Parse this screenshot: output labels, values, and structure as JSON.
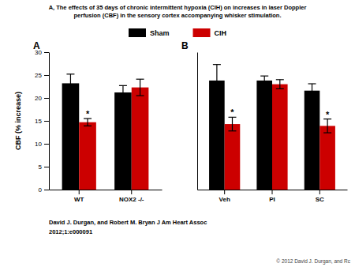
{
  "chart_data": [
    {
      "type": "bar",
      "title": "A, The effects of 35 days of chronic intermittent hypoxia (CIH) on increases in laser Doppler",
      "subtitle": "perfusion (CBF) in the sensory cortex accompanying whisker stimulation.",
      "panel_label": "A",
      "ylabel": "CBF (% increase)",
      "categories": [
        "WT",
        "NOX2 -/-"
      ],
      "series": [
        {
          "name": "Sham",
          "color": "#000000",
          "values": [
            23.2,
            21.2
          ],
          "errors": [
            2.0,
            1.5
          ]
        },
        {
          "name": "CIH",
          "color": "#cc0000",
          "values": [
            14.7,
            22.3
          ],
          "errors": [
            0.8,
            1.8
          ]
        }
      ],
      "ylim": [
        0,
        30
      ],
      "yticks": [
        0,
        5,
        10,
        15,
        20,
        25,
        30
      ],
      "legend": "top",
      "annotations": [
        {
          "text": "*",
          "category": "WT",
          "series": "CIH"
        }
      ],
      "footer": [
        "David J. Durgan, and Robert M. Bryan J Am Heart Assoc",
        "2012;1:e000091"
      ],
      "credit": "© 2012 David J. Durgan, and Rc"
    },
    {
      "type": "bar",
      "panel_label": "B",
      "categories": [
        "Veh",
        "PI",
        "SC"
      ],
      "series": [
        {
          "name": "Sham",
          "color": "#000000",
          "values": [
            23.8,
            23.8,
            21.6
          ],
          "errors": [
            3.5,
            1.0,
            1.5
          ]
        },
        {
          "name": "CIH",
          "color": "#cc0000",
          "values": [
            14.3,
            23.0,
            13.9
          ],
          "errors": [
            1.5,
            1.0,
            1.5
          ]
        }
      ],
      "ylim": [
        0,
        30
      ],
      "tick_labels": "x",
      "annotations": [
        {
          "text": "*",
          "category": "Veh",
          "series": "CIH"
        },
        {
          "text": "*",
          "category": "SC",
          "series": "CIH"
        }
      ]
    }
  ]
}
